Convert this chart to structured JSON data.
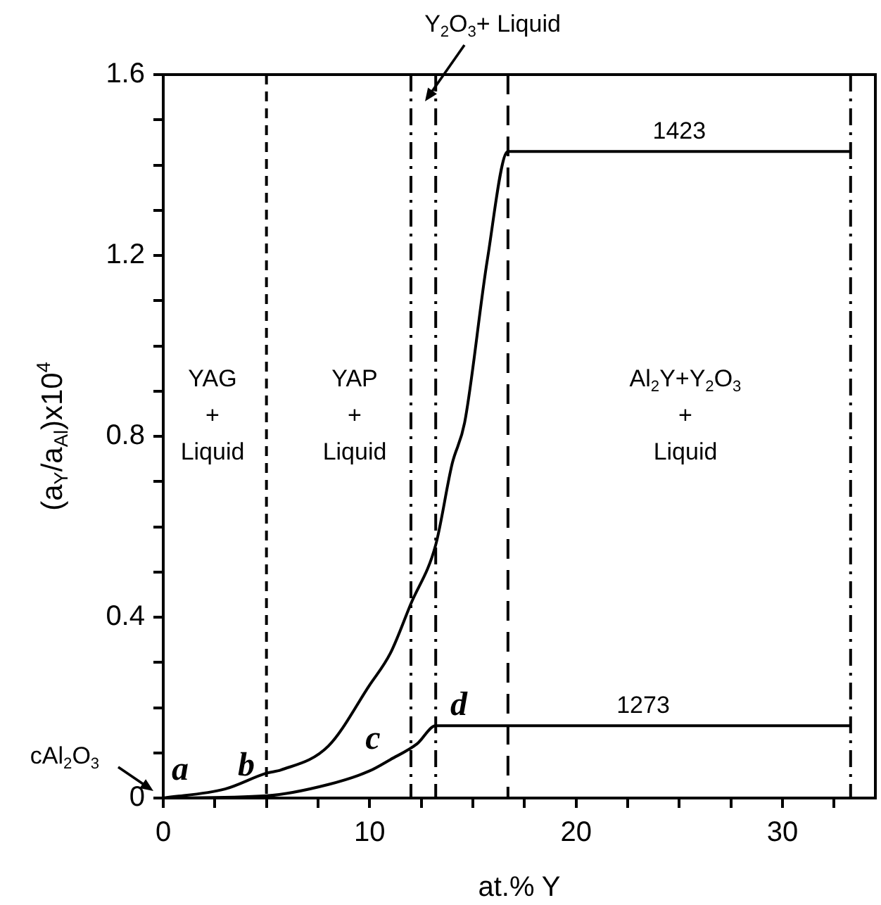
{
  "chart_data": {
    "type": "line",
    "xlabel": "at.% Y",
    "ylabel": "(a$_{Y}$/a$_{Al}$)x10$^{4}$",
    "xlim": [
      0,
      34.5
    ],
    "ylim": [
      0,
      1.6
    ],
    "xticks": [
      0,
      {
        "value": 2.5,
        "label": null
      },
      {
        "value": 5,
        "label": null
      },
      {
        "value": 7.5,
        "label": null
      },
      10,
      {
        "value": 12.5,
        "label": null
      },
      {
        "value": 15,
        "label": null
      },
      {
        "value": 17.5,
        "label": null
      },
      20,
      {
        "value": 22.5,
        "label": null
      },
      {
        "value": 25,
        "label": null
      },
      {
        "value": 27.5,
        "label": null
      },
      30,
      {
        "value": 32.5,
        "label": null
      }
    ],
    "yticks": [
      0,
      {
        "value": 0.1,
        "label": null
      },
      {
        "value": 0.2,
        "label": null
      },
      {
        "value": 0.3,
        "label": null
      },
      0.4,
      {
        "value": 0.5,
        "label": null
      },
      {
        "value": 0.6,
        "label": null
      },
      {
        "value": 0.7,
        "label": null
      },
      0.8,
      {
        "value": 0.9,
        "label": null
      },
      {
        "value": 1.0,
        "label": null
      },
      {
        "value": 1.1,
        "label": null
      },
      1.2,
      {
        "value": 1.3,
        "label": null
      },
      {
        "value": 1.4,
        "label": null
      },
      {
        "value": 1.5,
        "label": null
      },
      1.6
    ],
    "grid": false,
    "legend": false,
    "marker": "none",
    "line_style": "solid",
    "series": [
      {
        "name": "1423",
        "color": "#000000",
        "x": [
          0,
          3,
          5,
          5.7,
          8,
          10,
          11,
          12,
          13.2,
          14,
          14.6,
          15.7,
          16.7,
          33.3
        ],
        "values": [
          0,
          0.02,
          0.055,
          0.062,
          0.115,
          0.25,
          0.32,
          0.43,
          0.56,
          0.74,
          0.83,
          1.19,
          1.43,
          1.43
        ]
      },
      {
        "name": "1273",
        "color": "#000000",
        "x": [
          0,
          5,
          8,
          10,
          11,
          12.3,
          13.2,
          33.3
        ],
        "values": [
          0,
          0.005,
          0.03,
          0.06,
          0.085,
          0.12,
          0.16,
          0.16
        ]
      }
    ],
    "ref_lines": [
      {
        "axis": "x",
        "value": 5,
        "line_style": "dashed"
      },
      {
        "axis": "x",
        "value": 12,
        "line_style": "dashdot"
      },
      {
        "axis": "x",
        "value": 13.2,
        "line_style": "dashdot"
      },
      {
        "axis": "x",
        "value": 16.7,
        "line_style": "longdash"
      },
      {
        "axis": "x",
        "value": 33.3,
        "line_style": "dashdot"
      }
    ],
    "annotations": [
      "cAl$_{2}$O$_{3}$",
      "Y$_{2}$O$_{3}$+ Liquid",
      "a",
      "b",
      "c",
      "d",
      "YAG",
      "+",
      "Liquid",
      "YAP",
      "+",
      "Liquid",
      "Al$_{2}$Y+Y$_{2}$O$_{3}$",
      "+",
      "Liquid"
    ]
  }
}
